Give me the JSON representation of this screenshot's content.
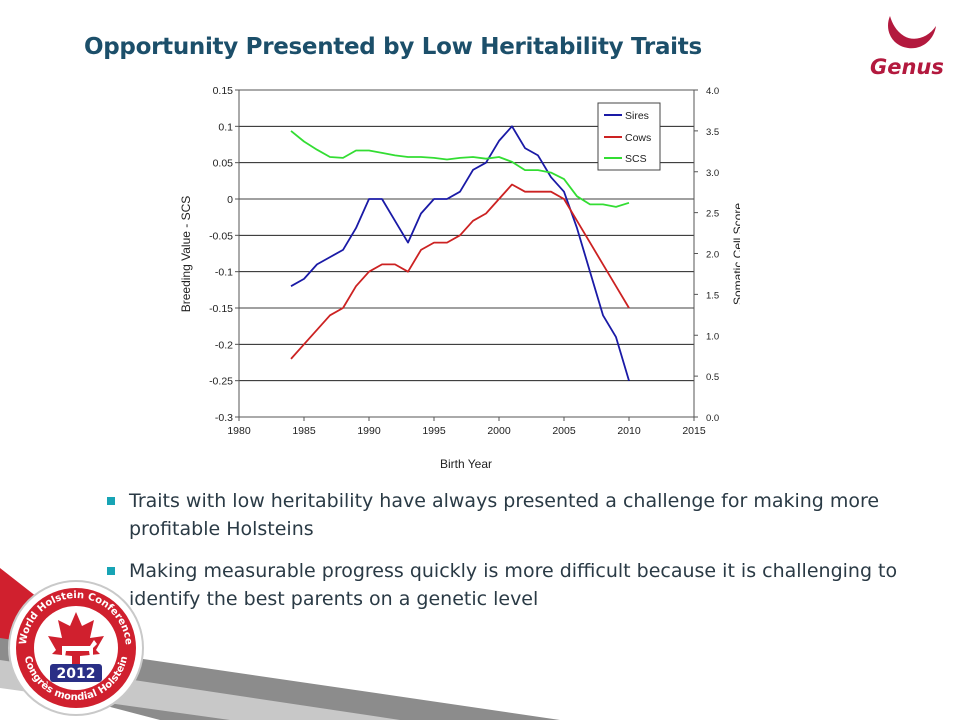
{
  "slide": {
    "title": "Opportunity Presented by Low Heritability Traits",
    "logo_text": "Genus",
    "badge": {
      "ring_text": "World Holstein Conference",
      "ring_text_fr": "Congrès mondial Holstein",
      "year": "2012"
    },
    "bullets": [
      "Traits with low heritability have always presented a challenge for making more profitable Holsteins",
      "Making measurable progress quickly is more difficult because it is challenging to identify the best parents on a genetic level"
    ],
    "colors": {
      "title": "#1c4f6a",
      "bullet_marker": "#17a4b5",
      "logo": "#b3193e",
      "badge_red": "#d0202e"
    }
  },
  "chart_data": {
    "type": "line",
    "xlabel": "Birth Year",
    "ylabel": "Breeding Value - SCS",
    "y2label": "Somatic Cell Score",
    "xlim": [
      1980,
      2015
    ],
    "ylim": [
      -0.3,
      0.15
    ],
    "y2lim": [
      0.0,
      4.0
    ],
    "xticks": [
      "1980",
      "1985",
      "1990",
      "1995",
      "2000",
      "2005",
      "2010",
      "2015"
    ],
    "yticks": [
      "0.15",
      "0.1",
      "0.05",
      "0",
      "-0.05",
      "-0.1",
      "-0.15",
      "-0.2",
      "-0.25",
      "-0.3"
    ],
    "y2ticks": [
      "4.0",
      "3.5",
      "3.0",
      "2.5",
      "2.0",
      "1.5",
      "1.0",
      "0.5",
      "0.0"
    ],
    "grid": true,
    "legend_position": "top-right",
    "series": [
      {
        "name": "Sires",
        "axis": "left",
        "color": "#1a1aa6",
        "x": [
          1984,
          1985,
          1986,
          1987,
          1988,
          1989,
          1990,
          1991,
          1992,
          1993,
          1994,
          1995,
          1996,
          1997,
          1998,
          1999,
          2000,
          2001,
          2002,
          2003,
          2004,
          2005,
          2006,
          2007,
          2008,
          2009,
          2010
        ],
        "y": [
          -0.12,
          -0.11,
          -0.09,
          -0.08,
          -0.07,
          -0.04,
          0.0,
          0.0,
          -0.03,
          -0.06,
          -0.02,
          0.0,
          0.0,
          0.01,
          0.04,
          0.05,
          0.08,
          0.1,
          0.07,
          0.06,
          0.03,
          0.01,
          -0.04,
          -0.1,
          -0.16,
          -0.19,
          -0.25
        ]
      },
      {
        "name": "Cows",
        "axis": "left",
        "color": "#cc2222",
        "x": [
          1984,
          1985,
          1986,
          1987,
          1988,
          1989,
          1990,
          1991,
          1992,
          1993,
          1994,
          1995,
          1996,
          1997,
          1998,
          1999,
          2000,
          2001,
          2002,
          2003,
          2004,
          2005,
          2006,
          2007,
          2008,
          2009,
          2010
        ],
        "y": [
          -0.22,
          -0.2,
          -0.18,
          -0.16,
          -0.15,
          -0.12,
          -0.1,
          -0.09,
          -0.09,
          -0.1,
          -0.07,
          -0.06,
          -0.06,
          -0.05,
          -0.03,
          -0.02,
          0.0,
          0.02,
          0.01,
          0.01,
          0.01,
          0.0,
          -0.03,
          -0.06,
          -0.09,
          -0.12,
          -0.15
        ]
      },
      {
        "name": "SCS",
        "axis": "right",
        "color": "#33dd33",
        "x": [
          1984,
          1985,
          1986,
          1987,
          1988,
          1989,
          1990,
          1991,
          1992,
          1993,
          1994,
          1995,
          1996,
          1997,
          1998,
          1999,
          2000,
          2001,
          2002,
          2003,
          2004,
          2005,
          2006,
          2007,
          2008,
          2009,
          2010
        ],
        "y": [
          3.5,
          3.37,
          3.27,
          3.18,
          3.17,
          3.26,
          3.26,
          3.23,
          3.2,
          3.18,
          3.18,
          3.17,
          3.15,
          3.17,
          3.18,
          3.16,
          3.18,
          3.12,
          3.02,
          3.02,
          2.99,
          2.91,
          2.7,
          2.6,
          2.6,
          2.57,
          2.62
        ]
      }
    ]
  }
}
